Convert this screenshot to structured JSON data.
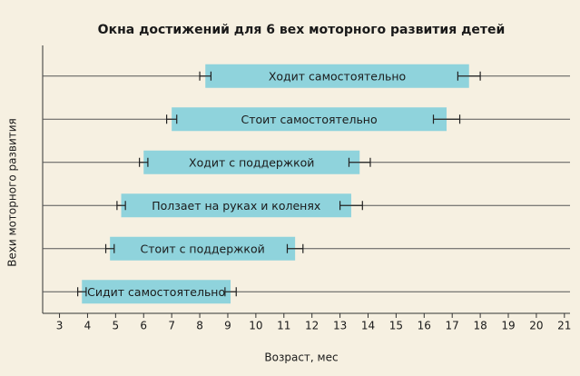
{
  "chart_data": {
    "type": "range_bar",
    "title": "Окна достижений для 6 вех моторного развития детей",
    "x_label": "Возраст, мес",
    "y_label": "Вехи моторного развития",
    "categories": [
      "Сидит самостоятельно",
      "Стоит с поддержкой",
      "Ползает на руках и коленях",
      "Ходит с поддержкой",
      "Стоит самостоятельно",
      "Ходит самостоятельно"
    ],
    "start": [
      3.8,
      4.8,
      5.2,
      6.0,
      7.0,
      8.2
    ],
    "end": [
      9.1,
      11.4,
      13.4,
      13.7,
      16.8,
      17.6
    ],
    "start_error": [
      0.15,
      0.15,
      0.15,
      0.15,
      0.18,
      0.2
    ],
    "end_error": [
      0.2,
      0.28,
      0.4,
      0.38,
      0.47,
      0.4
    ],
    "color": "#8fd3dc",
    "xlim": [
      2.4,
      21.2
    ],
    "xticks": [
      3,
      4,
      5,
      6,
      7,
      8,
      9,
      10,
      11,
      12,
      13,
      14,
      15,
      16,
      17,
      18,
      19,
      20,
      21
    ]
  }
}
